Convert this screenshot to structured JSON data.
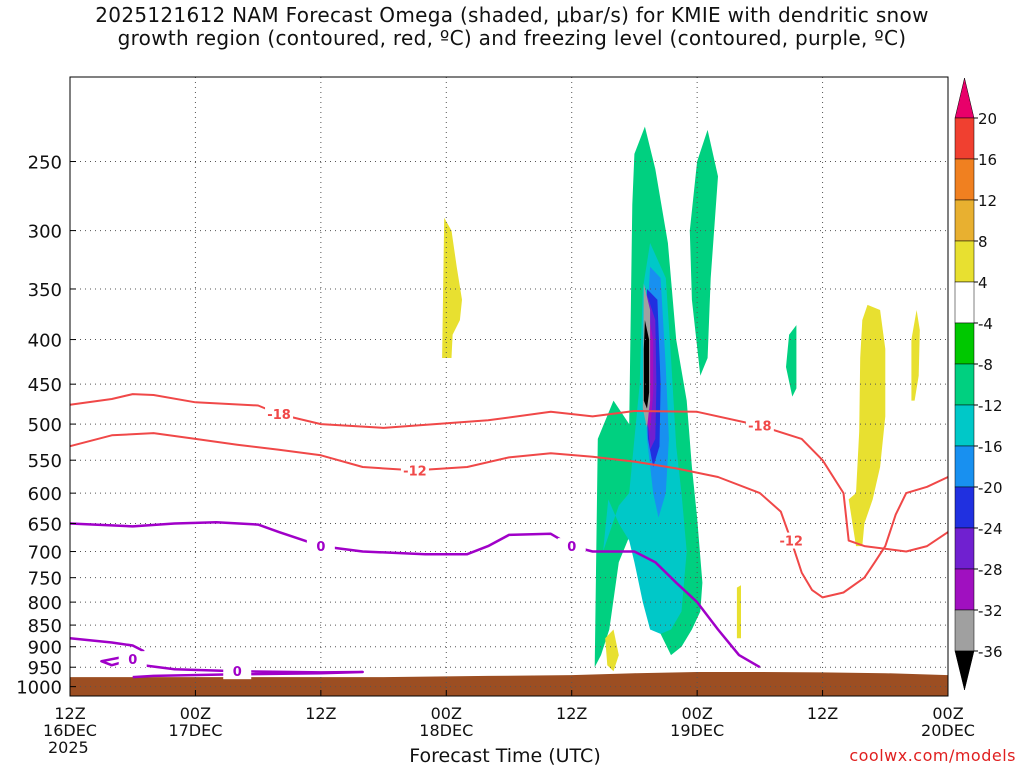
{
  "title": {
    "line1": "2025121612 NAM Forecast Omega (shaded, μbar/s) for KMIE with dendritic snow",
    "line2": "growth region (contoured, red, ºC) and freezing level (contoured, purple, ºC)"
  },
  "credit": "coolwx.com/models",
  "chart_data": {
    "type": "contour",
    "xlabel": "Forecast Time (UTC)",
    "ylabel": "",
    "x_range_hours": [
      0,
      84
    ],
    "y_range_hpa": [
      200,
      1025
    ],
    "y_scale": "log",
    "grid": true,
    "x_ticks": [
      {
        "h": 0,
        "l1": "12Z",
        "l2": "16DEC",
        "l3": "2025"
      },
      {
        "h": 12,
        "l1": "00Z",
        "l2": "17DEC",
        "l3": ""
      },
      {
        "h": 24,
        "l1": "12Z",
        "l2": "",
        "l3": ""
      },
      {
        "h": 36,
        "l1": "00Z",
        "l2": "18DEC",
        "l3": ""
      },
      {
        "h": 48,
        "l1": "12Z",
        "l2": "",
        "l3": ""
      },
      {
        "h": 60,
        "l1": "00Z",
        "l2": "19DEC",
        "l3": ""
      },
      {
        "h": 72,
        "l1": "12Z",
        "l2": "",
        "l3": ""
      },
      {
        "h": 84,
        "l1": "00Z",
        "l2": "20DEC",
        "l3": ""
      }
    ],
    "y_ticks": [
      250,
      300,
      350,
      400,
      450,
      500,
      550,
      600,
      650,
      700,
      750,
      800,
      850,
      900,
      950,
      1000
    ],
    "colorbar": {
      "levels": [
        20,
        16,
        12,
        8,
        4,
        -4,
        -8,
        -12,
        -16,
        -20,
        -24,
        -28,
        -32,
        -36
      ],
      "colors": [
        "#e8006a",
        "#f04030",
        "#f08020",
        "#e8b030",
        "#e8e030",
        "#ffffff",
        "#00c800",
        "#00d080",
        "#00c8c8",
        "#1890f0",
        "#2030e0",
        "#7020d0",
        "#a010c0",
        "#a0a0a0",
        "#000000"
      ]
    },
    "ground_color": "#9c4e22",
    "contours": {
      "dgz_color": "#f04848",
      "freezing_color": "#a000c8",
      "series": [
        {
          "label": "-18",
          "kind": "dgz",
          "points": [
            [
              0,
              475
            ],
            [
              4,
              468
            ],
            [
              6,
              462
            ],
            [
              8,
              463
            ],
            [
              12,
              472
            ],
            [
              18,
              476
            ],
            [
              20,
              487
            ],
            [
              24,
              500
            ],
            [
              30,
              505
            ],
            [
              40,
              495
            ],
            [
              46,
              484
            ],
            [
              50,
              490
            ],
            [
              54,
              483
            ],
            [
              60,
              484
            ],
            [
              66,
              502
            ],
            [
              70,
              520
            ],
            [
              72,
              550
            ],
            [
              74,
              600
            ],
            [
              74.5,
              680
            ],
            [
              76,
              690
            ],
            [
              80,
              700
            ],
            [
              82,
              690
            ],
            [
              84,
              665
            ]
          ]
        },
        {
          "label": "-12",
          "kind": "dgz",
          "points": [
            [
              0,
              530
            ],
            [
              4,
              515
            ],
            [
              8,
              512
            ],
            [
              12,
              520
            ],
            [
              16,
              528
            ],
            [
              20,
              535
            ],
            [
              24,
              543
            ],
            [
              28,
              560
            ],
            [
              33,
              565
            ],
            [
              38,
              560
            ],
            [
              42,
              546
            ],
            [
              46,
              540
            ],
            [
              50,
              545
            ],
            [
              54,
              552
            ],
            [
              58,
              562
            ],
            [
              62,
              575
            ],
            [
              66,
              600
            ],
            [
              68,
              630
            ],
            [
              69,
              680
            ],
            [
              70,
              740
            ],
            [
              71,
              775
            ],
            [
              72,
              790
            ],
            [
              74,
              780
            ],
            [
              76,
              750
            ],
            [
              77,
              720
            ],
            [
              78,
              690
            ],
            [
              79,
              635
            ],
            [
              80,
              600
            ],
            [
              82,
              590
            ],
            [
              84,
              575
            ]
          ]
        },
        {
          "label": "0",
          "kind": "freezing",
          "points": [
            [
              0,
              650
            ],
            [
              6,
              655
            ],
            [
              10,
              650
            ],
            [
              14,
              648
            ],
            [
              18,
              652
            ],
            [
              20,
              665
            ],
            [
              24,
              690
            ],
            [
              28,
              700
            ],
            [
              34,
              705
            ],
            [
              38,
              705
            ],
            [
              40,
              690
            ],
            [
              42,
              670
            ],
            [
              46,
              668
            ],
            [
              48,
              690
            ],
            [
              50,
              700
            ],
            [
              54,
              700
            ],
            [
              56,
              720
            ],
            [
              58,
              760
            ],
            [
              60,
              800
            ],
            [
              62,
              860
            ],
            [
              64,
              920
            ],
            [
              66,
              950
            ]
          ]
        },
        {
          "label": "0",
          "kind": "freezing",
          "points": [
            [
              0,
              880
            ],
            [
              4,
              890
            ],
            [
              6,
              897
            ],
            [
              7,
              910
            ],
            [
              6,
              930
            ],
            [
              4,
              945
            ],
            [
              3,
              935
            ],
            [
              5,
              925
            ],
            [
              7,
              945
            ],
            [
              10,
              955
            ],
            [
              16,
              960
            ],
            [
              24,
              963
            ],
            [
              28,
              962
            ],
            [
              24,
              965
            ],
            [
              16,
              968
            ],
            [
              8,
              972
            ],
            [
              6,
              975
            ]
          ]
        }
      ]
    },
    "shaded_regions": [
      {
        "value": -8,
        "points": [
          [
            50.2,
            950
          ],
          [
            50.5,
            520
          ],
          [
            52,
            470
          ],
          [
            53.5,
            500
          ],
          [
            53.8,
            280
          ],
          [
            54,
            245
          ],
          [
            55,
            228
          ],
          [
            56,
            255
          ],
          [
            57.2,
            310
          ],
          [
            58,
            400
          ],
          [
            59,
            470
          ],
          [
            59.5,
            560
          ],
          [
            60,
            640
          ],
          [
            60.5,
            760
          ],
          [
            60.3,
            820
          ],
          [
            59.5,
            860
          ],
          [
            58.5,
            900
          ],
          [
            57.5,
            920
          ],
          [
            56.5,
            870
          ],
          [
            55.5,
            780
          ],
          [
            54.5,
            700
          ],
          [
            53.8,
            660
          ],
          [
            52.5,
            720
          ],
          [
            51.6,
            860
          ],
          [
            50.8,
            920
          ]
        ]
      },
      {
        "value": -8,
        "points": [
          [
            59.5,
            360
          ],
          [
            59.3,
            300
          ],
          [
            60,
            250
          ],
          [
            61,
            230
          ],
          [
            62,
            260
          ],
          [
            61.3,
            340
          ],
          [
            61,
            420
          ],
          [
            60.3,
            440
          ]
        ]
      },
      {
        "value": -8,
        "points": [
          [
            68.5,
            430
          ],
          [
            68.8,
            395
          ],
          [
            69.5,
            385
          ],
          [
            69.5,
            455
          ],
          [
            69.1,
            465
          ]
        ]
      },
      {
        "value": -12,
        "points": [
          [
            51,
            700
          ],
          [
            51.5,
            610
          ],
          [
            52.5,
            650
          ],
          [
            53.5,
            680
          ],
          [
            54,
            720
          ],
          [
            54.8,
            800
          ],
          [
            55.5,
            860
          ],
          [
            56.5,
            870
          ],
          [
            57.5,
            860
          ],
          [
            58.5,
            820
          ],
          [
            59,
            700
          ],
          [
            58.5,
            600
          ],
          [
            58,
            530
          ],
          [
            57.5,
            420
          ],
          [
            57,
            340
          ],
          [
            55.5,
            310
          ],
          [
            54.8,
            350
          ],
          [
            54.5,
            450
          ],
          [
            54,
            520
          ],
          [
            53.5,
            600
          ],
          [
            52.5,
            620
          ]
        ]
      },
      {
        "value": -16,
        "points": [
          [
            55.5,
            330
          ],
          [
            56.5,
            340
          ],
          [
            57,
            430
          ],
          [
            57.3,
            520
          ],
          [
            57,
            600
          ],
          [
            56.3,
            640
          ],
          [
            55.8,
            600
          ],
          [
            55.2,
            520
          ],
          [
            55,
            420
          ]
        ]
      },
      {
        "value": -20,
        "points": [
          [
            55.2,
            350
          ],
          [
            56.2,
            360
          ],
          [
            56.5,
            450
          ],
          [
            56.4,
            530
          ],
          [
            55.8,
            560
          ],
          [
            55.3,
            520
          ],
          [
            55,
            430
          ]
        ]
      },
      {
        "value": -24,
        "points": [
          [
            55.2,
            355
          ],
          [
            56,
            380
          ],
          [
            56.1,
            450
          ],
          [
            56,
            520
          ],
          [
            55.5,
            535
          ],
          [
            55.1,
            470
          ],
          [
            55,
            400
          ]
        ]
      },
      {
        "value": -28,
        "points": [
          [
            55.1,
            360
          ],
          [
            55.8,
            400
          ],
          [
            55.8,
            460
          ],
          [
            55.5,
            510
          ],
          [
            55,
            490
          ],
          [
            54.9,
            420
          ]
        ]
      },
      {
        "value": -32,
        "points": [
          [
            54.9,
            345
          ],
          [
            55.5,
            370
          ],
          [
            55.5,
            470
          ],
          [
            55.2,
            505
          ],
          [
            54.8,
            480
          ]
        ]
      },
      {
        "value": -36,
        "points": [
          [
            55,
            380
          ],
          [
            55.4,
            400
          ],
          [
            55.4,
            460
          ],
          [
            55.2,
            480
          ],
          [
            54.9,
            470
          ],
          [
            54.9,
            410
          ]
        ]
      },
      {
        "value": 4,
        "points": [
          [
            35.8,
            290
          ],
          [
            36.5,
            300
          ],
          [
            37,
            330
          ],
          [
            37.5,
            360
          ],
          [
            37.3,
            380
          ],
          [
            36.6,
            395
          ],
          [
            36.5,
            420
          ],
          [
            35.6,
            420
          ]
        ]
      },
      {
        "value": 4,
        "points": [
          [
            74.5,
            610
          ],
          [
            75.2,
            600
          ],
          [
            75.5,
            510
          ],
          [
            75.6,
            420
          ],
          [
            75.8,
            380
          ],
          [
            76.3,
            365
          ],
          [
            77.5,
            370
          ],
          [
            78,
            410
          ],
          [
            78,
            490
          ],
          [
            77.5,
            560
          ],
          [
            76.8,
            610
          ],
          [
            76,
            650
          ],
          [
            75.8,
            690
          ],
          [
            75.2,
            690
          ]
        ]
      },
      {
        "value": 4,
        "points": [
          [
            80.5,
            470
          ],
          [
            80.5,
            400
          ],
          [
            81,
            370
          ],
          [
            81.3,
            390
          ],
          [
            81.2,
            440
          ],
          [
            80.8,
            470
          ]
        ]
      },
      {
        "value": 4,
        "points": [
          [
            51.2,
            880
          ],
          [
            52,
            860
          ],
          [
            52.5,
            920
          ],
          [
            52,
            960
          ],
          [
            51.4,
            945
          ]
        ]
      },
      {
        "value": 4,
        "points": [
          [
            63.8,
            770
          ],
          [
            64.2,
            765
          ],
          [
            64.2,
            880
          ],
          [
            63.8,
            880
          ]
        ]
      }
    ]
  }
}
